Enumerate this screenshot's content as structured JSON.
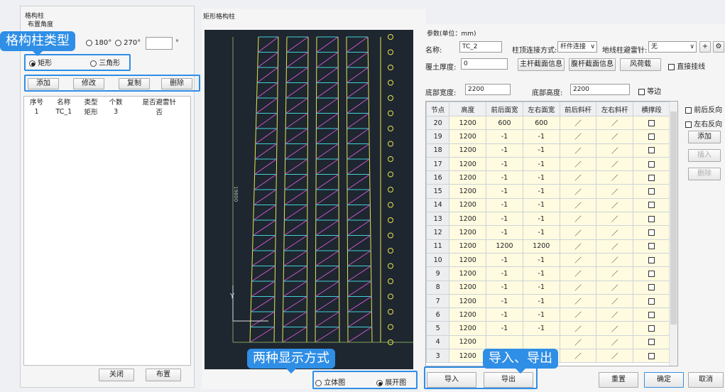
{
  "left_panel": {
    "group_title": "格构柱",
    "angle_label": "布置角度",
    "angle_options": [
      "180°",
      "270°"
    ],
    "degree_unit": "°",
    "type_callout": "格构柱类型",
    "type_options": [
      "矩形",
      "三角形"
    ],
    "buttons": {
      "add": "添加",
      "edit": "修改",
      "copy": "复制",
      "delete": "删除"
    },
    "list_headers": [
      "序号",
      "名称",
      "类型",
      "个数",
      "是否避雷针"
    ],
    "rows": [
      {
        "index": "1",
        "name": "TC_1",
        "type": "矩形",
        "count": "3",
        "lightning": "否"
      }
    ],
    "close_label": "关闭",
    "place_label": "布置"
  },
  "center_panel": {
    "title": "矩形格构柱",
    "view_callout": "两种显示方式",
    "view_options": [
      "立体图",
      "展开图"
    ],
    "dim_label": "19800",
    "axis_y": "Y"
  },
  "right_panel": {
    "params_title": "参数(单位：mm)",
    "name_label": "名称:",
    "name_value": "TC_2",
    "top_connect_label": "柱顶连接方式:",
    "top_connect_value": "杆件连接",
    "ground_lightning_label": "地线柱避雷针:",
    "ground_lightning_value": "无",
    "plus": "+",
    "cover_label": "覆土厚度:",
    "cover_value": "0",
    "btn_main": "主杆截面信息",
    "btn_web": "腹杆截面信息",
    "btn_wind": "风荷载",
    "direct_label": "直接挂线",
    "bottom_width_label": "底部宽度:",
    "bottom_width_value": "2200",
    "bottom_height_label": "底部高度:",
    "bottom_height_value": "2200",
    "equal_label": "等边",
    "grid_headers": [
      "节点",
      "高度",
      "前后面宽",
      "左右面宽",
      "前后斜杆",
      "左右斜杆",
      "横撑段"
    ],
    "grid_rows": [
      [
        "20",
        "1200",
        "600",
        "600"
      ],
      [
        "19",
        "1200",
        "-1",
        "-1"
      ],
      [
        "18",
        "1200",
        "-1",
        "-1"
      ],
      [
        "17",
        "1200",
        "-1",
        "-1"
      ],
      [
        "16",
        "1200",
        "-1",
        "-1"
      ],
      [
        "15",
        "1200",
        "-1",
        "-1"
      ],
      [
        "14",
        "1200",
        "-1",
        "-1"
      ],
      [
        "13",
        "1200",
        "-1",
        "-1"
      ],
      [
        "12",
        "1200",
        "-1",
        "-1"
      ],
      [
        "11",
        "1200",
        "1200",
        "1200"
      ],
      [
        "10",
        "1200",
        "-1",
        "-1"
      ],
      [
        "9",
        "1200",
        "-1",
        "-1"
      ],
      [
        "8",
        "1200",
        "-1",
        "-1"
      ],
      [
        "7",
        "1200",
        "-1",
        "-1"
      ],
      [
        "6",
        "1200",
        "-1",
        "-1"
      ],
      [
        "5",
        "1200",
        "-1",
        "-1"
      ],
      [
        "4",
        "1200",
        "",
        ""
      ],
      [
        "3",
        "1200",
        "",
        ""
      ]
    ],
    "side_options": [
      "前后反向",
      "左右反向"
    ],
    "side_buttons": {
      "add": "添加",
      "insert": "插入",
      "delete": "删除"
    },
    "io_callout": "导入、导出",
    "import_label": "导入",
    "export_label": "导出",
    "reset_label": "重置",
    "ok_label": "确定",
    "cancel_label": "取消"
  },
  "colors": {
    "accent": "#2f8ee6",
    "canvas": "#1e2630",
    "member_yellow": "#e6e64a",
    "member_magenta": "#cc55cc",
    "member_cyan": "#44d0d8"
  }
}
